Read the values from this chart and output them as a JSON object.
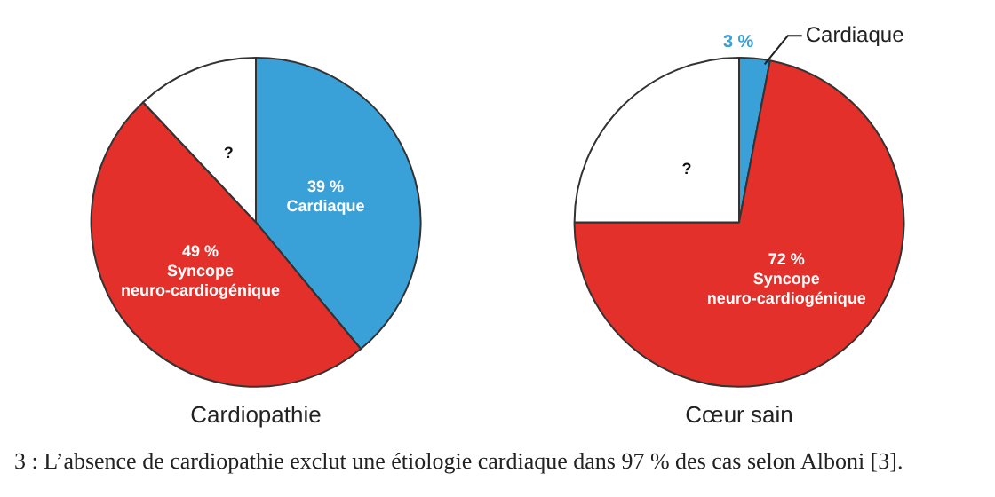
{
  "chart_data": [
    {
      "type": "pie",
      "title": "Cardiopathie",
      "categories": [
        "Cardiaque",
        "Syncope neuro-cardiogénique",
        "?"
      ],
      "values": [
        39,
        49,
        12
      ],
      "colors": [
        "#3aa0d8",
        "#e3302a",
        "#ffffff"
      ],
      "value_labels": [
        "39 %",
        "49 %",
        null
      ]
    },
    {
      "type": "pie",
      "title": "Cœur sain",
      "categories": [
        "Cardiaque",
        "Syncope neuro-cardiogénique",
        "?"
      ],
      "values": [
        3,
        72,
        25
      ],
      "colors": [
        "#3aa0d8",
        "#e3302a",
        "#ffffff"
      ],
      "value_labels": [
        "3 %",
        "72 %",
        null
      ]
    },
    {
      "type": "other",
      "annotations": [
        "3 : L’absence de cardiopathie exclut une étiologie cardiaque dans 97 % des cas selon Alboni [3]."
      ]
    }
  ]
}
